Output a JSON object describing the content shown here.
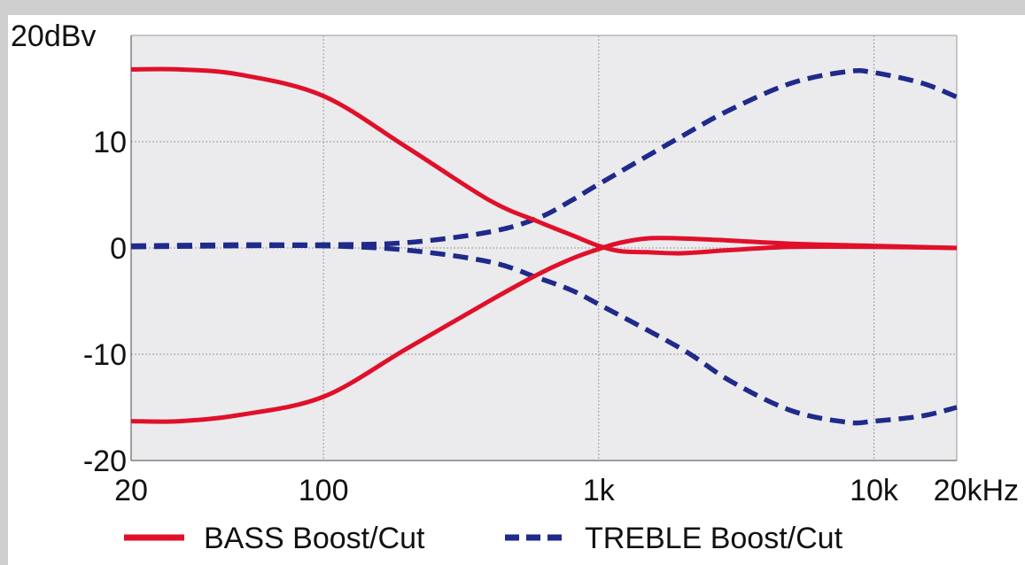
{
  "chart_data": {
    "type": "line",
    "title": "",
    "xlabel": "",
    "ylabel": "",
    "x_scale": "log",
    "xlim": [
      20,
      20000
    ],
    "ylim": [
      -20,
      20
    ],
    "grid": true,
    "legend_position": "bottom",
    "y_ticks": [
      {
        "value": 20,
        "label": "20dBv"
      },
      {
        "value": 10,
        "label": "10"
      },
      {
        "value": 0,
        "label": "0"
      },
      {
        "value": -10,
        "label": "-10"
      },
      {
        "value": -20,
        "label": "-20"
      }
    ],
    "x_ticks": [
      {
        "value": 20,
        "label": "20"
      },
      {
        "value": 100,
        "label": "100"
      },
      {
        "value": 1000,
        "label": "1k"
      },
      {
        "value": 10000,
        "label": "10k"
      },
      {
        "value": 20000,
        "label": "20kHz"
      }
    ],
    "series": [
      {
        "name": "BASS Boost/Cut",
        "curve": "boost",
        "color": "#e0102a",
        "dash": "solid",
        "points": [
          [
            20,
            16.8
          ],
          [
            30,
            16.8
          ],
          [
            50,
            16.3
          ],
          [
            100,
            14.3
          ],
          [
            200,
            9.5
          ],
          [
            400,
            4.5
          ],
          [
            600,
            2.5
          ],
          [
            800,
            1.2
          ],
          [
            1000,
            0.2
          ],
          [
            1200,
            -0.3
          ],
          [
            1500,
            -0.4
          ],
          [
            2000,
            -0.5
          ],
          [
            3000,
            -0.2
          ],
          [
            5000,
            0.1
          ],
          [
            10000,
            0.1
          ],
          [
            20000,
            0.0
          ]
        ]
      },
      {
        "name": "BASS Boost/Cut",
        "curve": "cut",
        "color": "#e0102a",
        "dash": "solid",
        "points": [
          [
            20,
            -16.3
          ],
          [
            30,
            -16.3
          ],
          [
            50,
            -15.7
          ],
          [
            100,
            -14.0
          ],
          [
            200,
            -9.5
          ],
          [
            400,
            -5.0
          ],
          [
            600,
            -2.5
          ],
          [
            800,
            -1.0
          ],
          [
            1000,
            -0.1
          ],
          [
            1200,
            0.5
          ],
          [
            1500,
            0.9
          ],
          [
            2000,
            0.9
          ],
          [
            3000,
            0.7
          ],
          [
            5000,
            0.4
          ],
          [
            10000,
            0.2
          ],
          [
            20000,
            0.0
          ]
        ]
      },
      {
        "name": "TREBLE Boost/Cut",
        "curve": "boost",
        "color": "#1f2a8a",
        "dash": "dashed",
        "points": [
          [
            20,
            0.2
          ],
          [
            50,
            0.3
          ],
          [
            100,
            0.3
          ],
          [
            200,
            0.5
          ],
          [
            400,
            1.5
          ],
          [
            600,
            2.8
          ],
          [
            800,
            4.5
          ],
          [
            1000,
            6.0
          ],
          [
            2000,
            10.5
          ],
          [
            3000,
            13.0
          ],
          [
            5000,
            15.5
          ],
          [
            8000,
            16.6
          ],
          [
            10000,
            16.5
          ],
          [
            15000,
            15.5
          ],
          [
            20000,
            14.2
          ]
        ]
      },
      {
        "name": "TREBLE Boost/Cut",
        "curve": "cut",
        "color": "#1f2a8a",
        "dash": "dashed",
        "points": [
          [
            20,
            0.1
          ],
          [
            50,
            0.2
          ],
          [
            100,
            0.2
          ],
          [
            200,
            -0.2
          ],
          [
            400,
            -1.3
          ],
          [
            600,
            -2.8
          ],
          [
            800,
            -4.0
          ],
          [
            1000,
            -5.3
          ],
          [
            2000,
            -9.5
          ],
          [
            3000,
            -12.5
          ],
          [
            5000,
            -15.3
          ],
          [
            8000,
            -16.4
          ],
          [
            10000,
            -16.3
          ],
          [
            15000,
            -15.8
          ],
          [
            20000,
            -15.0
          ]
        ]
      }
    ],
    "legend": [
      {
        "label": "BASS Boost/Cut",
        "color": "#e0102a",
        "dash": "solid"
      },
      {
        "label": "TREBLE Boost/Cut",
        "color": "#1f2a8a",
        "dash": "dashed"
      }
    ]
  }
}
